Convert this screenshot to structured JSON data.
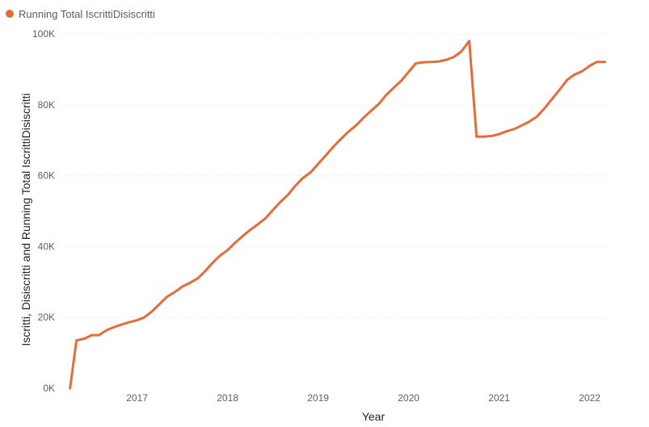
{
  "chart_data": {
    "type": "line",
    "title": "",
    "xlabel": "Year",
    "ylabel": "Iscritti, Disiscritti and Running Total IscrittiDisiscritti",
    "legend": {
      "placement": "top-left",
      "entries": [
        "Running Total IscrittiDisiscritti"
      ]
    },
    "grid": true,
    "xlim": [
      2016.2,
      2022.2
    ],
    "ylim": [
      0,
      100000
    ],
    "x_ticks": [
      {
        "value": 2017,
        "label": "2017"
      },
      {
        "value": 2018,
        "label": "2018"
      },
      {
        "value": 2019,
        "label": "2019"
      },
      {
        "value": 2020,
        "label": "2020"
      },
      {
        "value": 2021,
        "label": "2021"
      },
      {
        "value": 2022,
        "label": "2022"
      }
    ],
    "y_ticks": [
      {
        "value": 0,
        "label": "0K"
      },
      {
        "value": 20000,
        "label": "20K"
      },
      {
        "value": 40000,
        "label": "40K"
      },
      {
        "value": 60000,
        "label": "60K"
      },
      {
        "value": 80000,
        "label": "80K"
      },
      {
        "value": 100000,
        "label": "100K"
      }
    ],
    "series": [
      {
        "name": "Running Total IscrittiDisiscritti",
        "color": "#E66C37",
        "points": [
          [
            2016.26,
            0
          ],
          [
            2016.33,
            13500
          ],
          [
            2016.42,
            14000
          ],
          [
            2016.5,
            15000
          ],
          [
            2016.58,
            15000
          ],
          [
            2016.67,
            16500
          ],
          [
            2016.75,
            17300
          ],
          [
            2016.83,
            18000
          ],
          [
            2016.92,
            18700
          ],
          [
            2017.0,
            19200
          ],
          [
            2017.08,
            20000
          ],
          [
            2017.17,
            21800
          ],
          [
            2017.25,
            23800
          ],
          [
            2017.33,
            25800
          ],
          [
            2017.42,
            27200
          ],
          [
            2017.5,
            28700
          ],
          [
            2017.58,
            29700
          ],
          [
            2017.67,
            31000
          ],
          [
            2017.75,
            33000
          ],
          [
            2017.83,
            35300
          ],
          [
            2017.92,
            37500
          ],
          [
            2018.0,
            39000
          ],
          [
            2018.08,
            41000
          ],
          [
            2018.17,
            43000
          ],
          [
            2018.25,
            44700
          ],
          [
            2018.33,
            46200
          ],
          [
            2018.42,
            48000
          ],
          [
            2018.5,
            50300
          ],
          [
            2018.58,
            52500
          ],
          [
            2018.67,
            54700
          ],
          [
            2018.75,
            57200
          ],
          [
            2018.83,
            59300
          ],
          [
            2018.92,
            61000
          ],
          [
            2019.0,
            63300
          ],
          [
            2019.08,
            65600
          ],
          [
            2019.17,
            68200
          ],
          [
            2019.25,
            70300
          ],
          [
            2019.33,
            72300
          ],
          [
            2019.42,
            74200
          ],
          [
            2019.5,
            76300
          ],
          [
            2019.58,
            78200
          ],
          [
            2019.67,
            80200
          ],
          [
            2019.75,
            82700
          ],
          [
            2019.83,
            84700
          ],
          [
            2019.92,
            86800
          ],
          [
            2020.0,
            89300
          ],
          [
            2020.08,
            91700
          ],
          [
            2020.17,
            92000
          ],
          [
            2020.25,
            92100
          ],
          [
            2020.33,
            92200
          ],
          [
            2020.42,
            92700
          ],
          [
            2020.5,
            93500
          ],
          [
            2020.58,
            95000
          ],
          [
            2020.67,
            98000
          ],
          [
            2020.75,
            71000
          ],
          [
            2020.83,
            71000
          ],
          [
            2020.92,
            71200
          ],
          [
            2021.0,
            71700
          ],
          [
            2021.08,
            72500
          ],
          [
            2021.17,
            73200
          ],
          [
            2021.25,
            74200
          ],
          [
            2021.33,
            75200
          ],
          [
            2021.42,
            76700
          ],
          [
            2021.5,
            79000
          ],
          [
            2021.58,
            81500
          ],
          [
            2021.67,
            84300
          ],
          [
            2021.75,
            87000
          ],
          [
            2021.83,
            88500
          ],
          [
            2021.92,
            89500
          ],
          [
            2022.0,
            91000
          ],
          [
            2022.08,
            92100
          ],
          [
            2022.17,
            92100
          ]
        ]
      }
    ]
  }
}
